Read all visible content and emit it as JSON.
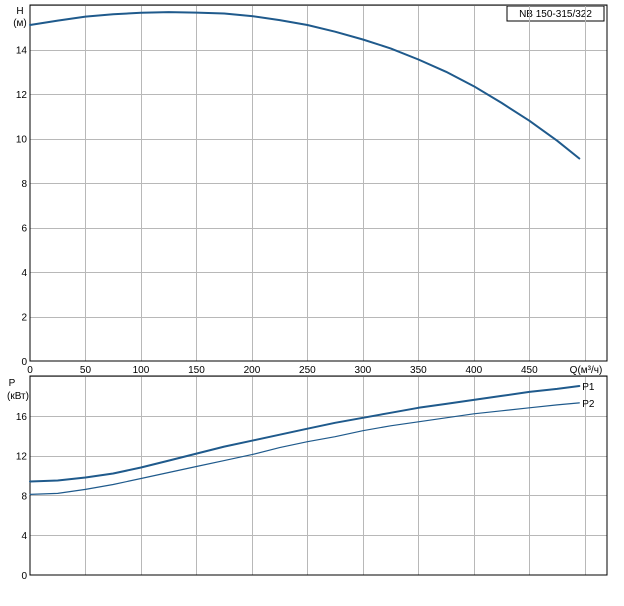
{
  "title": "NB 150-315/322",
  "chart_data": [
    {
      "type": "line",
      "ylabel_top": "H",
      "ylabel_unit": "(м)",
      "xlabel": "Q(м³/ч)",
      "xlim": [
        0,
        520
      ],
      "ylim": [
        0,
        16
      ],
      "xticks": [
        0,
        50,
        100,
        150,
        200,
        250,
        300,
        350,
        400,
        450
      ],
      "yticks": [
        0,
        2,
        4,
        6,
        8,
        10,
        12,
        14
      ],
      "grid": true,
      "series": [
        {
          "name": "",
          "color": "#1f5a8c",
          "x": [
            0,
            25,
            50,
            75,
            100,
            125,
            150,
            175,
            200,
            225,
            250,
            275,
            300,
            325,
            350,
            375,
            400,
            425,
            450,
            475,
            495
          ],
          "y": [
            15.1,
            15.3,
            15.48,
            15.58,
            15.65,
            15.68,
            15.66,
            15.62,
            15.5,
            15.32,
            15.1,
            14.8,
            14.45,
            14.05,
            13.55,
            13.0,
            12.35,
            11.6,
            10.8,
            9.9,
            9.1
          ]
        }
      ]
    },
    {
      "type": "line",
      "ylabel_top": "P",
      "ylabel_unit": "(кВт)",
      "xlim": [
        0,
        520
      ],
      "ylim": [
        0,
        20
      ],
      "yticks": [
        0,
        4,
        8,
        12,
        16
      ],
      "grid": true,
      "series": [
        {
          "name": "P1",
          "color": "#1f5a8c",
          "x": [
            0,
            25,
            50,
            75,
            100,
            125,
            150,
            175,
            200,
            225,
            250,
            275,
            300,
            325,
            350,
            375,
            400,
            425,
            450,
            475,
            495
          ],
          "y": [
            9.4,
            9.5,
            9.8,
            10.2,
            10.8,
            11.5,
            12.2,
            12.9,
            13.5,
            14.1,
            14.7,
            15.3,
            15.8,
            16.3,
            16.8,
            17.2,
            17.6,
            18.0,
            18.4,
            18.7,
            19.0
          ]
        },
        {
          "name": "P2",
          "color": "#1f5a8c",
          "x": [
            0,
            25,
            50,
            75,
            100,
            125,
            150,
            175,
            200,
            225,
            250,
            275,
            300,
            325,
            350,
            375,
            400,
            425,
            450,
            475,
            495
          ],
          "y": [
            8.1,
            8.2,
            8.6,
            9.1,
            9.7,
            10.3,
            10.9,
            11.5,
            12.1,
            12.8,
            13.4,
            13.9,
            14.5,
            15.0,
            15.4,
            15.8,
            16.2,
            16.5,
            16.8,
            17.1,
            17.3
          ]
        }
      ]
    }
  ]
}
